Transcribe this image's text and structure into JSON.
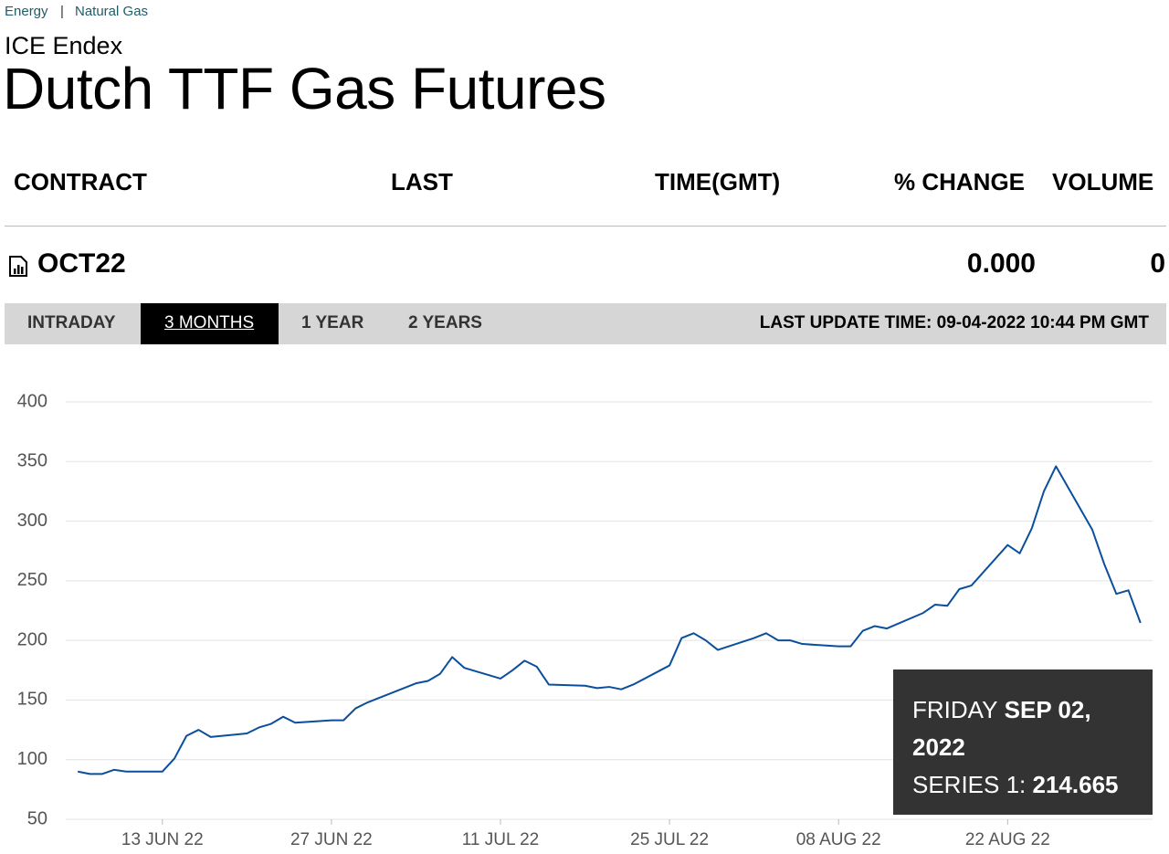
{
  "breadcrumb": {
    "links": [
      "Energy",
      "Natural Gas"
    ],
    "separator": "|"
  },
  "exchange": "ICE Endex",
  "title": "Dutch TTF Gas Futures",
  "table": {
    "headers": [
      "CONTRACT",
      "LAST",
      "TIME(GMT)",
      "% CHANGE",
      "VOLUME"
    ],
    "rows": [
      {
        "contract": "OCT22",
        "change": "0.000",
        "volume": "0"
      }
    ]
  },
  "tabs": {
    "items": [
      "INTRADAY",
      "3 MONTHS",
      "1 YEAR",
      "2 YEARS"
    ],
    "active": 1
  },
  "last_update": "LAST UPDATE TIME: 09-04-2022 10:44 PM GMT",
  "chart_data": {
    "type": "line",
    "x": [
      "06 JUN 22",
      "07 JUN 22",
      "08 JUN 22",
      "09 JUN 22",
      "10 JUN 22",
      "13 JUN 22",
      "14 JUN 22",
      "15 JUN 22",
      "16 JUN 22",
      "17 JUN 22",
      "20 JUN 22",
      "21 JUN 22",
      "22 JUN 22",
      "23 JUN 22",
      "24 JUN 22",
      "27 JUN 22",
      "28 JUN 22",
      "29 JUN 22",
      "30 JUN 22",
      "01 JUL 22",
      "04 JUL 22",
      "05 JUL 22",
      "06 JUL 22",
      "07 JUL 22",
      "08 JUL 22",
      "11 JUL 22",
      "12 JUL 22",
      "13 JUL 22",
      "14 JUL 22",
      "15 JUL 22",
      "18 JUL 22",
      "19 JUL 22",
      "20 JUL 22",
      "21 JUL 22",
      "22 JUL 22",
      "25 JUL 22",
      "26 JUL 22",
      "27 JUL 22",
      "28 JUL 22",
      "29 JUL 22",
      "01 AUG 22",
      "02 AUG 22",
      "03 AUG 22",
      "04 AUG 22",
      "05 AUG 22",
      "08 AUG 22",
      "09 AUG 22",
      "10 AUG 22",
      "11 AUG 22",
      "12 AUG 22",
      "15 AUG 22",
      "16 AUG 22",
      "17 AUG 22",
      "18 AUG 22",
      "19 AUG 22",
      "22 AUG 22",
      "23 AUG 22",
      "24 AUG 22",
      "25 AUG 22",
      "26 AUG 22",
      "29 AUG 22",
      "30 AUG 22",
      "31 AUG 22",
      "01 SEP 22",
      "02 SEP 22"
    ],
    "series": [
      {
        "color": "#0b4f9c",
        "values": [
          90,
          88,
          88,
          91.5,
          90,
          90,
          101,
          120,
          125,
          119,
          122,
          127,
          130,
          136,
          131,
          133,
          133,
          143,
          148,
          152,
          164,
          166,
          172,
          186,
          177,
          168,
          175,
          183,
          178,
          163,
          162,
          160,
          161,
          159,
          163,
          179,
          202,
          206,
          200,
          192,
          202,
          206,
          200,
          200,
          197,
          195,
          195,
          208,
          212,
          210,
          223,
          230,
          229,
          243,
          246,
          280,
          273,
          294,
          325,
          346,
          293,
          264,
          239,
          242,
          214.665
        ]
      }
    ],
    "xlim": [
      "05 JUN 22",
      "03 SEP 22"
    ],
    "xticks": [
      "13 JUN 22",
      "27 JUN 22",
      "11 JUL 22",
      "25 JUL 22",
      "08 AUG 22",
      "22 AUG 22"
    ],
    "ylim": [
      50,
      400
    ],
    "yticks": [
      50,
      100,
      150,
      200,
      250,
      300,
      350,
      400
    ],
    "grid": true
  },
  "tooltip": {
    "weekday": "FRIDAY",
    "date": "SEP 02, 2022",
    "label": "SERIES 1:",
    "value": 214.665
  }
}
